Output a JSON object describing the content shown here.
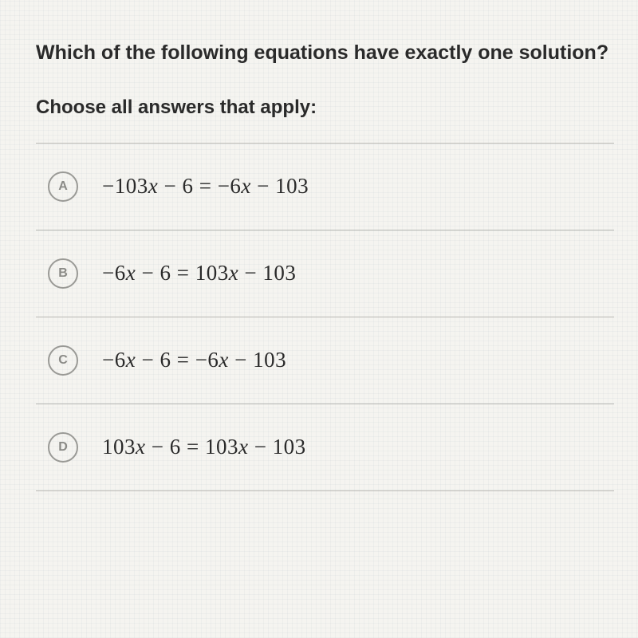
{
  "question": "Which of the following equations have exactly one solution?",
  "instruction": "Choose all answers that apply:",
  "options": [
    {
      "letter": "A",
      "coef1": "−103",
      "const1": "6",
      "coef2": "−6",
      "const2": "103"
    },
    {
      "letter": "B",
      "coef1": "−6",
      "const1": "6",
      "coef2": "103",
      "const2": "103"
    },
    {
      "letter": "C",
      "coef1": "−6",
      "const1": "6",
      "coef2": "−6",
      "const2": "103"
    },
    {
      "letter": "D",
      "coef1": "103",
      "const1": "6",
      "coef2": "103",
      "const2": "103"
    }
  ],
  "styling": {
    "background_color": "#f5f4f0",
    "text_color": "#2a2a2a",
    "circle_border_color": "#9a9a96",
    "circle_text_color": "#8a8a86",
    "divider_color": "#b8b8b4",
    "question_fontsize": 25,
    "instruction_fontsize": 24,
    "equation_fontsize": 27,
    "circle_size": 38,
    "grid_color": "rgba(180,190,200,0.12)"
  }
}
